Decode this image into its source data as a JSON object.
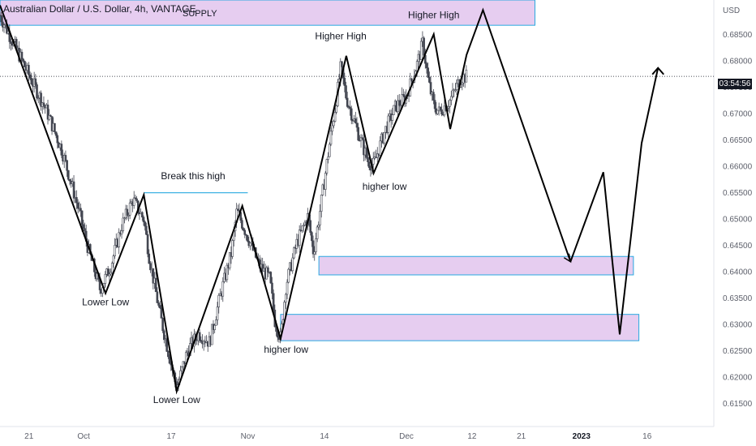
{
  "header": {
    "title": "Australian Dollar / U.S. Dollar, 4h, VANTAGE"
  },
  "axis": {
    "currency": "USD",
    "countdown": "03:54:56"
  },
  "colors": {
    "zone_fill": "#e6cdf0",
    "zone_stroke": "#29a9e0",
    "candle": "#434651",
    "path": "#000000",
    "text": "#131722",
    "axis_text": "#5d606b"
  },
  "chart_data": {
    "type": "candlestick",
    "title": "Australian Dollar / U.S. Dollar, 4h, VANTAGE",
    "ylabel": "USD",
    "y_ticks": [
      0.615,
      0.62,
      0.625,
      0.63,
      0.635,
      0.64,
      0.645,
      0.65,
      0.655,
      0.66,
      0.665,
      0.67,
      0.675,
      0.68,
      0.685
    ],
    "x_ticks": [
      "21",
      "Oct",
      "17",
      "Nov",
      "14",
      "Dec",
      "12",
      "21",
      "2023",
      "16"
    ],
    "x_tick_day": [
      0,
      10,
      26,
      40,
      54,
      69,
      81,
      90,
      101,
      113
    ],
    "ylim": [
      0.6105,
      0.6915
    ],
    "xlim": [
      -5.3,
      125.2
    ],
    "current_price": 0.677,
    "anchors": [
      {
        "d": -5.3,
        "p": 0.6886
      },
      {
        "d": 0,
        "p": 0.6772
      },
      {
        "d": 3,
        "p": 0.671
      },
      {
        "d": 6,
        "p": 0.663
      },
      {
        "d": 9,
        "p": 0.652
      },
      {
        "d": 11,
        "p": 0.6435
      },
      {
        "d": 13,
        "p": 0.6365
      },
      {
        "d": 15,
        "p": 0.6412
      },
      {
        "d": 17,
        "p": 0.6488
      },
      {
        "d": 19,
        "p": 0.6536
      },
      {
        "d": 21,
        "p": 0.6498
      },
      {
        "d": 22,
        "p": 0.6425
      },
      {
        "d": 24,
        "p": 0.6315
      },
      {
        "d": 26,
        "p": 0.6222
      },
      {
        "d": 27,
        "p": 0.6178
      },
      {
        "d": 29,
        "p": 0.625
      },
      {
        "d": 31,
        "p": 0.6282
      },
      {
        "d": 33,
        "p": 0.6265
      },
      {
        "d": 35,
        "p": 0.6355
      },
      {
        "d": 37,
        "p": 0.6435
      },
      {
        "d": 38,
        "p": 0.6515
      },
      {
        "d": 40,
        "p": 0.6465
      },
      {
        "d": 42,
        "p": 0.6412
      },
      {
        "d": 44,
        "p": 0.6386
      },
      {
        "d": 45,
        "p": 0.6302
      },
      {
        "d": 46,
        "p": 0.6272
      },
      {
        "d": 47,
        "p": 0.6375
      },
      {
        "d": 49,
        "p": 0.6455
      },
      {
        "d": 51,
        "p": 0.6505
      },
      {
        "d": 52,
        "p": 0.6435
      },
      {
        "d": 53,
        "p": 0.65
      },
      {
        "d": 55,
        "p": 0.6645
      },
      {
        "d": 56,
        "p": 0.6712
      },
      {
        "d": 57,
        "p": 0.6788
      },
      {
        "d": 58,
        "p": 0.673
      },
      {
        "d": 60,
        "p": 0.6668
      },
      {
        "d": 62,
        "p": 0.6608
      },
      {
        "d": 63,
        "p": 0.6602
      },
      {
        "d": 65,
        "p": 0.6665
      },
      {
        "d": 67,
        "p": 0.6712
      },
      {
        "d": 69,
        "p": 0.6732
      },
      {
        "d": 71,
        "p": 0.6795
      },
      {
        "d": 72,
        "p": 0.6835
      },
      {
        "d": 73,
        "p": 0.676
      },
      {
        "d": 74,
        "p": 0.6715
      },
      {
        "d": 75,
        "p": 0.6702
      },
      {
        "d": 77,
        "p": 0.6725
      },
      {
        "d": 79,
        "p": 0.6768
      },
      {
        "d": 80,
        "p": 0.677
      }
    ],
    "path": [
      {
        "d": -5.3,
        "p": 0.6905
      },
      {
        "d": 14,
        "p": 0.6358
      },
      {
        "d": 21,
        "p": 0.6545
      },
      {
        "d": 27,
        "p": 0.6172
      },
      {
        "d": 39,
        "p": 0.6524
      },
      {
        "d": 46,
        "p": 0.6272
      },
      {
        "d": 58,
        "p": 0.6809
      },
      {
        "d": 63,
        "p": 0.6586
      },
      {
        "d": 74,
        "p": 0.685
      },
      {
        "d": 77,
        "p": 0.667
      },
      {
        "d": 80,
        "p": 0.6811
      },
      {
        "d": 83,
        "p": 0.6896
      },
      {
        "d": 99,
        "p": 0.6418
      }
    ],
    "projection": [
      {
        "d": 99,
        "p": 0.6418
      },
      {
        "d": 105,
        "p": 0.6588
      },
      {
        "d": 108,
        "p": 0.628
      },
      {
        "d": 112,
        "p": 0.6643
      },
      {
        "d": 115,
        "p": 0.6786
      }
    ],
    "zones": [
      {
        "label": "SUPPLY",
        "d0": -5.3,
        "d1": 92.5,
        "p0": 0.6915,
        "p1": 0.6867
      },
      {
        "label": "",
        "d0": 53,
        "d1": 110.5,
        "p0": 0.6428,
        "p1": 0.6393
      },
      {
        "label": "",
        "d0": 46,
        "d1": 111.5,
        "p0": 0.6318,
        "p1": 0.6268
      }
    ],
    "trendline": {
      "d0": 21,
      "d1": 40,
      "p": 0.6549
    },
    "annotations": [
      {
        "text": "Break this high",
        "d": 30,
        "p": 0.6575
      },
      {
        "text": "Lower Low",
        "d": 14,
        "p": 0.6335
      },
      {
        "text": "Lower Low",
        "d": 27,
        "p": 0.615
      },
      {
        "text": "Higher High",
        "d": 57,
        "p": 0.684
      },
      {
        "text": "Higher High",
        "d": 74,
        "p": 0.688
      },
      {
        "text": "higher low",
        "d": 65,
        "p": 0.6555
      },
      {
        "text": "higher low",
        "d": 47,
        "p": 0.6245
      }
    ]
  }
}
